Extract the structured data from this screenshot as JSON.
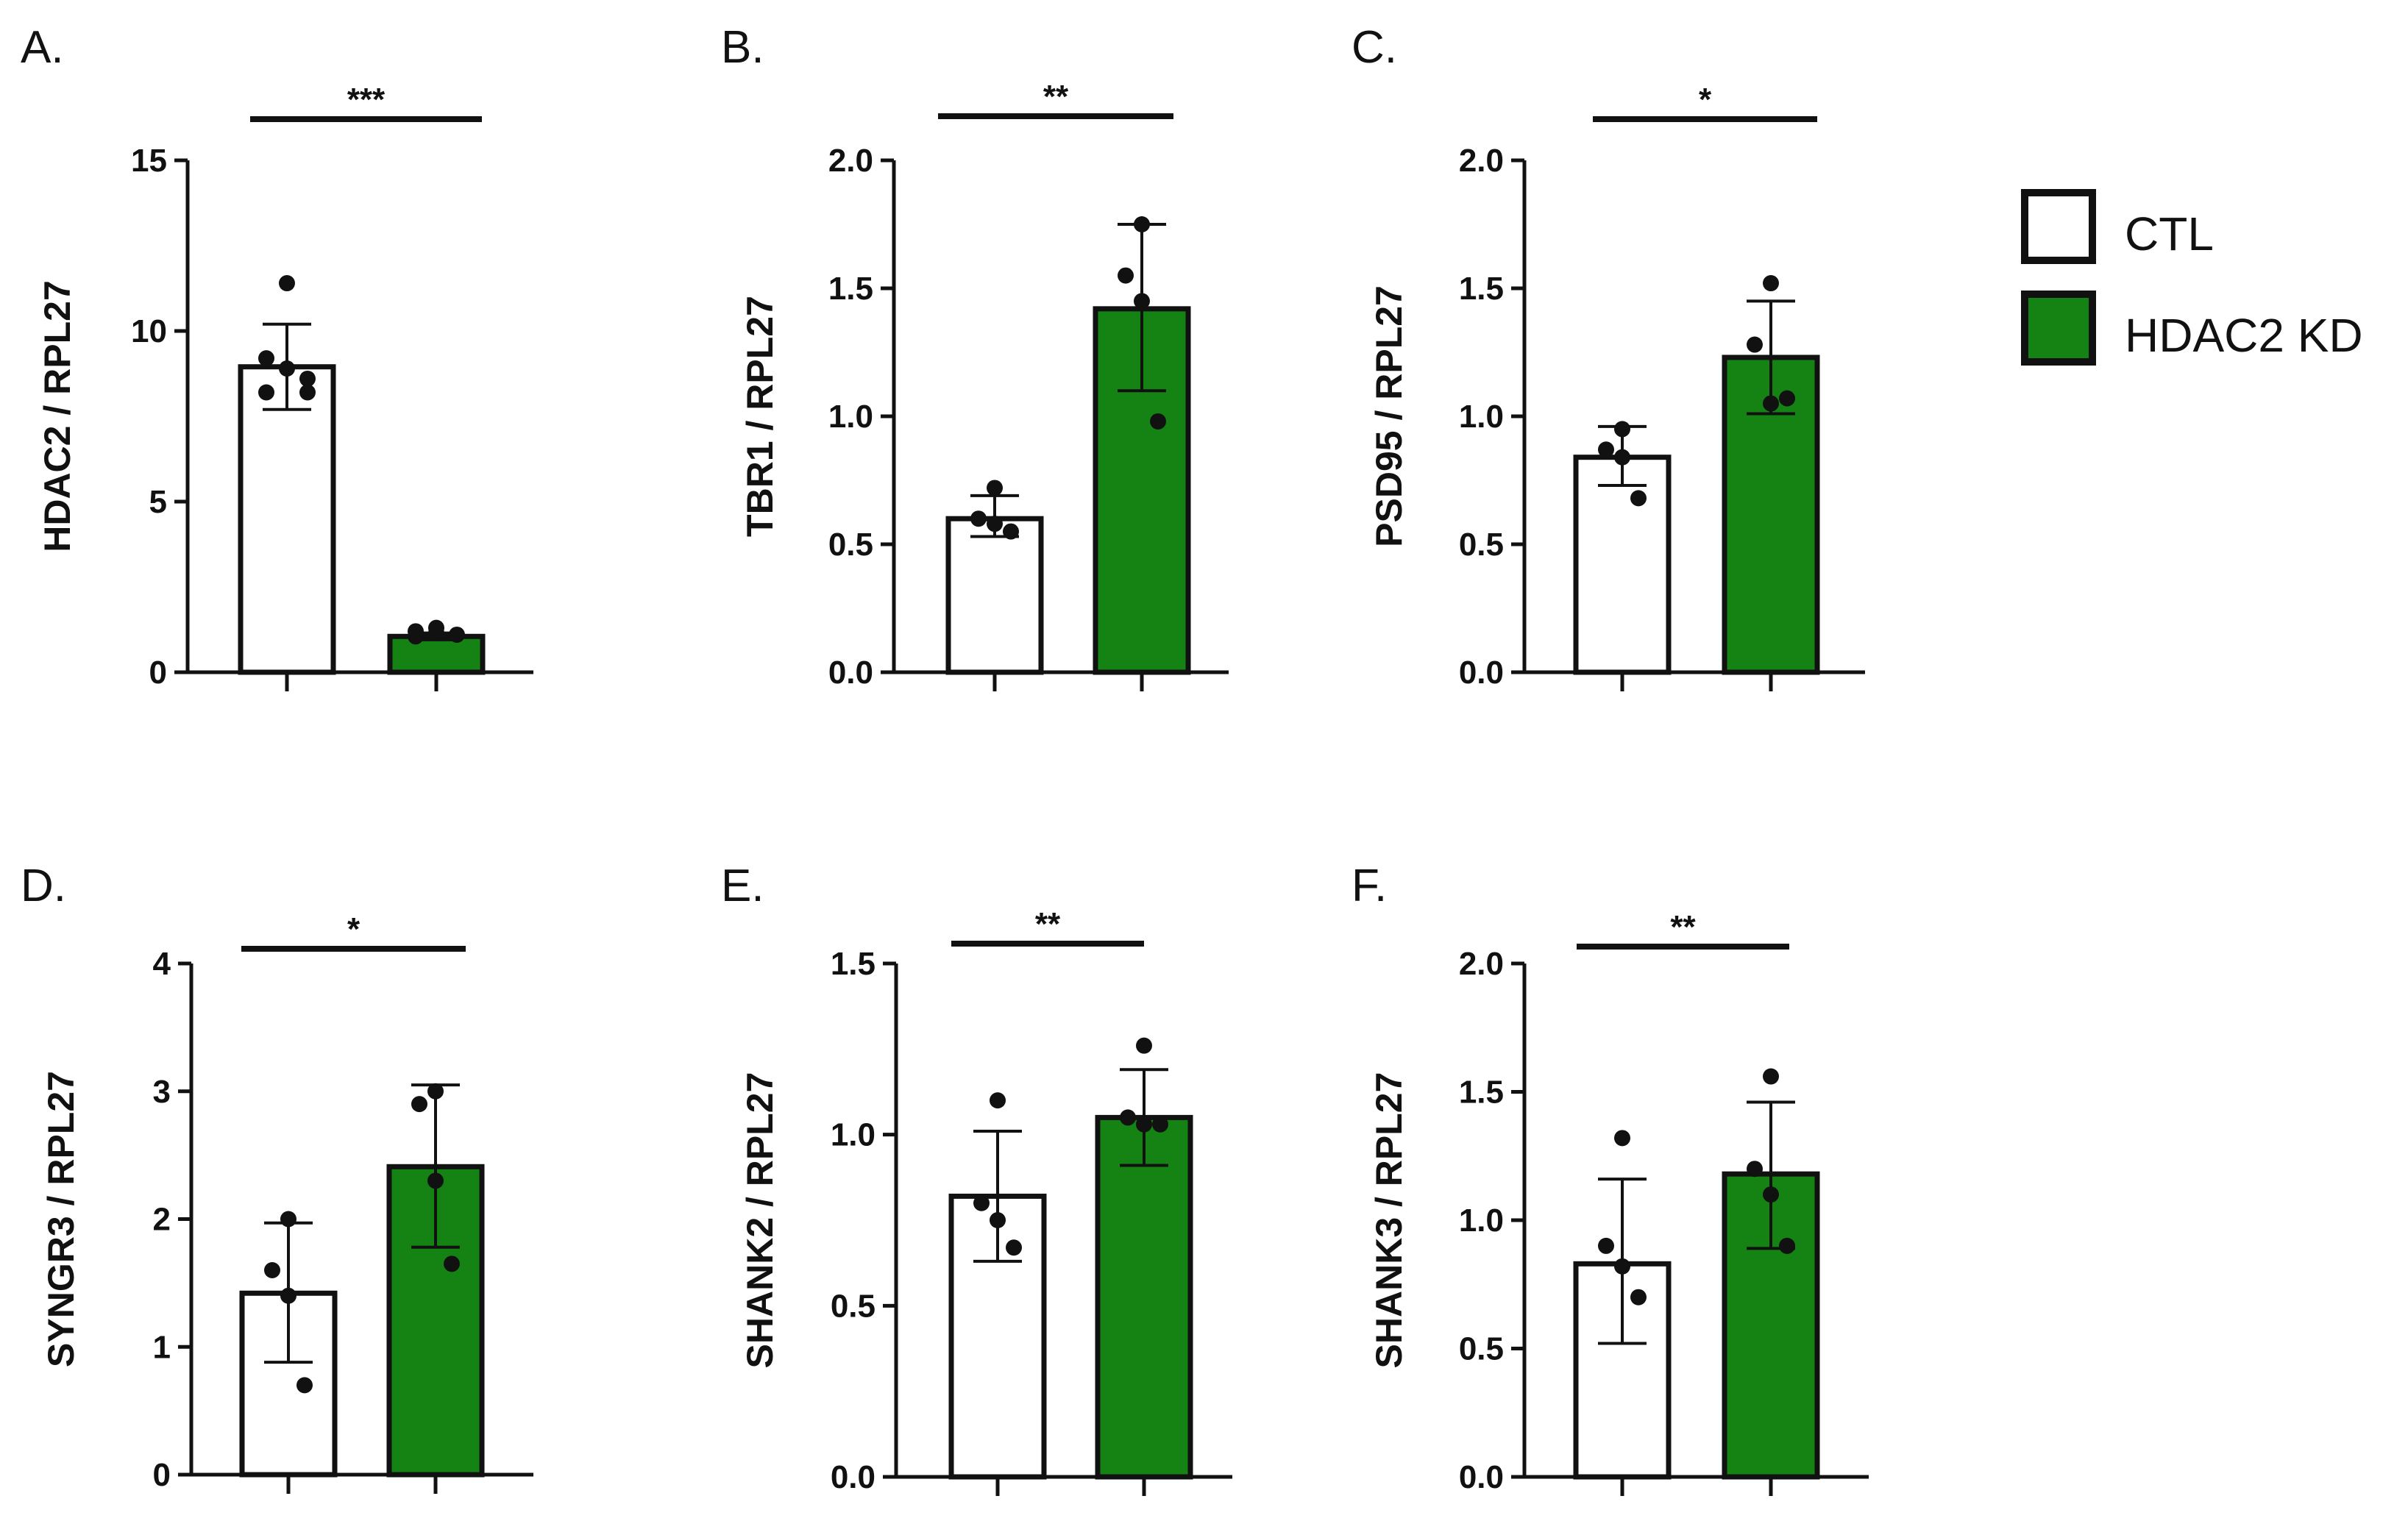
{
  "colors": {
    "ctl_fill": "#ffffff",
    "kd_fill": "#148314",
    "stroke": "#111111"
  },
  "legend": {
    "items": [
      {
        "label": "CTL",
        "color": "#ffffff"
      },
      {
        "label": "HDAC2 KD",
        "color": "#148314"
      }
    ]
  },
  "chart_data": [
    {
      "type": "bar",
      "panel": "A.",
      "ylabel": "HDAC2 / RPL27",
      "ylim": [
        0,
        15
      ],
      "yticks": [
        0,
        5,
        10,
        15
      ],
      "significance": "***",
      "categories": [
        "CTL",
        "HDAC2 KD"
      ],
      "series": [
        {
          "name": "CTL",
          "mean": 8.95,
          "error": [
            7.7,
            10.2
          ],
          "points": [
            11.4,
            9.2,
            8.9,
            8.6,
            8.2,
            8.2
          ]
        },
        {
          "name": "HDAC2 KD",
          "mean": 1.05,
          "error": [
            0.95,
            1.15
          ],
          "points": [
            1.3,
            1.2,
            1.15,
            1.1,
            1.05
          ]
        }
      ]
    },
    {
      "type": "bar",
      "panel": "B.",
      "ylabel": "TBR1 / RPL27",
      "ylim": [
        0,
        2.0
      ],
      "yticks": [
        "0.0",
        "0.5",
        "1.0",
        "1.5",
        "2.0"
      ],
      "significance": "**",
      "categories": [
        "CTL",
        "HDAC2 KD"
      ],
      "series": [
        {
          "name": "CTL",
          "mean": 0.6,
          "error": [
            0.53,
            0.69
          ],
          "points": [
            0.72,
            0.6,
            0.58,
            0.55
          ]
        },
        {
          "name": "HDAC2 KD",
          "mean": 1.42,
          "error": [
            1.1,
            1.75
          ],
          "points": [
            1.75,
            1.55,
            1.45,
            0.98
          ]
        }
      ]
    },
    {
      "type": "bar",
      "panel": "C.",
      "ylabel": "PSD95 / RPL27",
      "ylim": [
        0,
        2.0
      ],
      "yticks": [
        "0.0",
        "0.5",
        "1.0",
        "1.5",
        "2.0"
      ],
      "significance": "*",
      "categories": [
        "CTL",
        "HDAC2 KD"
      ],
      "series": [
        {
          "name": "CTL",
          "mean": 0.84,
          "error": [
            0.73,
            0.96
          ],
          "points": [
            0.95,
            0.87,
            0.84,
            0.68
          ]
        },
        {
          "name": "HDAC2 KD",
          "mean": 1.23,
          "error": [
            1.01,
            1.45
          ],
          "points": [
            1.52,
            1.28,
            1.05,
            1.07
          ]
        }
      ]
    },
    {
      "type": "bar",
      "panel": "D.",
      "ylabel": "SYNGR3 / RPL27",
      "ylim": [
        0,
        4
      ],
      "yticks": [
        0,
        1,
        2,
        3,
        4
      ],
      "significance": "*",
      "categories": [
        "CTL",
        "HDAC2 KD"
      ],
      "series": [
        {
          "name": "CTL",
          "mean": 1.42,
          "error": [
            0.88,
            1.97
          ],
          "points": [
            2.0,
            1.6,
            1.4,
            0.7
          ]
        },
        {
          "name": "HDAC2 KD",
          "mean": 2.41,
          "error": [
            1.78,
            3.05
          ],
          "points": [
            3.0,
            2.9,
            2.3,
            1.65
          ]
        }
      ]
    },
    {
      "type": "bar",
      "panel": "E.",
      "ylabel": "SHANK2 / RPL27",
      "ylim": [
        0,
        1.5
      ],
      "yticks": [
        "0.0",
        "0.5",
        "1.0",
        "1.5"
      ],
      "significance": "**",
      "categories": [
        "CTL",
        "HDAC2 KD"
      ],
      "series": [
        {
          "name": "CTL",
          "mean": 0.82,
          "error": [
            0.63,
            1.01
          ],
          "points": [
            1.1,
            0.8,
            0.75,
            0.67
          ]
        },
        {
          "name": "HDAC2 KD",
          "mean": 1.05,
          "error": [
            0.91,
            1.19
          ],
          "points": [
            1.26,
            1.05,
            1.03,
            1.03
          ]
        }
      ]
    },
    {
      "type": "bar",
      "panel": "F.",
      "ylabel": "SHANK3 / RPL27",
      "ylim": [
        0,
        2.0
      ],
      "yticks": [
        "0.0",
        "0.5",
        "1.0",
        "1.5",
        "2.0"
      ],
      "significance": "**",
      "categories": [
        "CTL",
        "HDAC2 KD"
      ],
      "series": [
        {
          "name": "CTL",
          "mean": 0.83,
          "error": [
            0.52,
            1.16
          ],
          "points": [
            1.32,
            0.9,
            0.82,
            0.7
          ]
        },
        {
          "name": "HDAC2 KD",
          "mean": 1.18,
          "error": [
            0.89,
            1.46
          ],
          "points": [
            1.56,
            1.2,
            1.1,
            0.9
          ]
        }
      ]
    }
  ]
}
